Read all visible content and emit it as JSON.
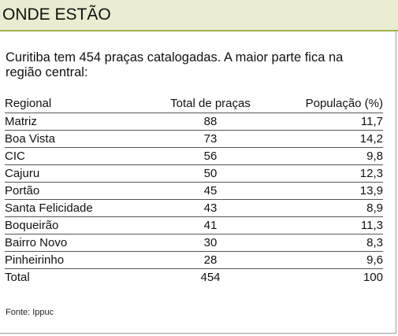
{
  "header": {
    "title": "ONDE ESTÃO"
  },
  "intro": "Curitiba tem 454 praças catalogadas. A maior parte fica na região central:",
  "table": {
    "columns": [
      "Regional",
      "Total de praças",
      "População (%)"
    ],
    "rows": [
      {
        "regional": "Matriz",
        "total": "88",
        "populacao": "11,7"
      },
      {
        "regional": "Boa Vista",
        "total": "73",
        "populacao": "14,2"
      },
      {
        "regional": "CIC",
        "total": "56",
        "populacao": "9,8"
      },
      {
        "regional": "Cajuru",
        "total": "50",
        "populacao": "12,3"
      },
      {
        "regional": "Portão",
        "total": "45",
        "populacao": "13,9"
      },
      {
        "regional": "Santa Felicidade",
        "total": "43",
        "populacao": "8,9"
      },
      {
        "regional": "Boqueirão",
        "total": "41",
        "populacao": "11,3"
      },
      {
        "regional": "Bairro Novo",
        "total": "30",
        "populacao": "8,3"
      },
      {
        "regional": "Pinheirinho",
        "total": "28",
        "populacao": "9,6"
      }
    ],
    "total_row": {
      "regional": "Total",
      "total": "454",
      "populacao": "100"
    }
  },
  "source": "Fonte: Ippuc",
  "colors": {
    "header_bg": "#e9ecd0",
    "header_rule": "#9fb04a",
    "frame": "#9a9a9a",
    "row_rule": "#555555"
  }
}
